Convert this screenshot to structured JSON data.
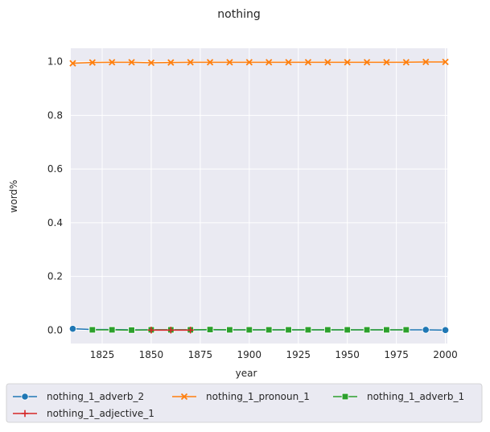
{
  "chart_data": {
    "type": "line",
    "title": "nothing",
    "xlabel": "year",
    "ylabel": "word%",
    "xlim": [
      1809,
      2001
    ],
    "ylim": [
      -0.05,
      1.05
    ],
    "xticks": [
      1825,
      1850,
      1875,
      1900,
      1925,
      1950,
      1975,
      2000
    ],
    "yticks": [
      0.0,
      0.2,
      0.4,
      0.6,
      0.8,
      1.0
    ],
    "grid": true,
    "legend_position": "bottom",
    "series": [
      {
        "name": "nothing_1_adverb_2",
        "color": "#1f77b4",
        "marker": "circle",
        "x": [
          1810,
          1820,
          1830,
          1840,
          1850,
          1860,
          1870,
          1880,
          1890,
          1900,
          1910,
          1920,
          1930,
          1940,
          1950,
          1960,
          1970,
          1980,
          1990,
          2000
        ],
        "y": [
          0.005,
          0.002,
          0.002,
          0.001,
          0.001,
          0.001,
          0.001,
          0.001,
          0.001,
          0.001,
          0.001,
          0.001,
          0.001,
          0.001,
          0.001,
          0.001,
          0.001,
          0.001,
          0.001,
          0.0
        ]
      },
      {
        "name": "nothing_1_pronoun_1",
        "color": "#ff7f0e",
        "marker": "x",
        "x": [
          1810,
          1820,
          1830,
          1840,
          1850,
          1860,
          1870,
          1880,
          1890,
          1900,
          1910,
          1920,
          1930,
          1940,
          1950,
          1960,
          1970,
          1980,
          1990,
          2000
        ],
        "y": [
          0.994,
          0.997,
          0.998,
          0.998,
          0.996,
          0.997,
          0.998,
          0.998,
          0.998,
          0.998,
          0.998,
          0.998,
          0.998,
          0.998,
          0.998,
          0.998,
          0.998,
          0.998,
          0.999,
          0.999
        ]
      },
      {
        "name": "nothing_1_adverb_1",
        "color": "#2ca02c",
        "marker": "square",
        "x": [
          1820,
          1830,
          1840,
          1850,
          1860,
          1870,
          1880,
          1890,
          1900,
          1910,
          1920,
          1930,
          1940,
          1950,
          1960,
          1970,
          1980
        ],
        "y": [
          0.001,
          0.001,
          0.0,
          0.001,
          0.001,
          0.001,
          0.002,
          0.001,
          0.001,
          0.001,
          0.001,
          0.001,
          0.001,
          0.001,
          0.001,
          0.001,
          0.001
        ]
      },
      {
        "name": "nothing_1_adjective_1",
        "color": "#d62728",
        "marker": "plus",
        "x": [
          1850,
          1860,
          1870
        ],
        "y": [
          0.0,
          0.0,
          0.0
        ]
      }
    ]
  }
}
